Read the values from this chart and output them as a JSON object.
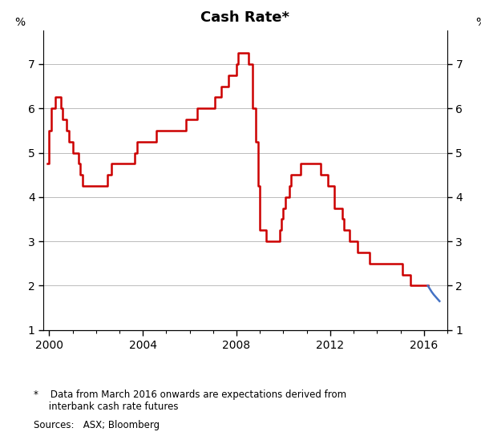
{
  "title": "Cash Rate*",
  "ylabel_left": "%",
  "ylabel_right": "%",
  "ylim": [
    1,
    7.75
  ],
  "yticks": [
    1,
    2,
    3,
    4,
    5,
    6,
    7
  ],
  "xlim_num": [
    1999.75,
    2017.0
  ],
  "xticks": [
    2000,
    2004,
    2008,
    2012,
    2016
  ],
  "footnote_star": "*    Data from March 2016 onwards are expectations derived from\n     interbank cash rate futures",
  "sources": "Sources:   ASX; Bloomberg",
  "red_color": "#CC0000",
  "blue_color": "#4472C4",
  "red_data": [
    [
      1999.917,
      4.75
    ],
    [
      2000.0,
      5.5
    ],
    [
      2000.083,
      6.0
    ],
    [
      2000.25,
      6.25
    ],
    [
      2000.333,
      6.25
    ],
    [
      2000.5,
      6.0
    ],
    [
      2000.583,
      5.75
    ],
    [
      2000.75,
      5.5
    ],
    [
      2000.833,
      5.25
    ],
    [
      2001.0,
      5.0
    ],
    [
      2001.083,
      5.0
    ],
    [
      2001.25,
      4.75
    ],
    [
      2001.333,
      4.5
    ],
    [
      2001.417,
      4.25
    ],
    [
      2001.583,
      4.25
    ],
    [
      2001.667,
      4.25
    ],
    [
      2001.75,
      4.25
    ],
    [
      2001.917,
      4.25
    ],
    [
      2002.0,
      4.25
    ],
    [
      2002.083,
      4.25
    ],
    [
      2002.25,
      4.25
    ],
    [
      2002.417,
      4.25
    ],
    [
      2002.5,
      4.5
    ],
    [
      2002.667,
      4.75
    ],
    [
      2002.75,
      4.75
    ],
    [
      2002.917,
      4.75
    ],
    [
      2003.0,
      4.75
    ],
    [
      2003.167,
      4.75
    ],
    [
      2003.333,
      4.75
    ],
    [
      2003.5,
      4.75
    ],
    [
      2003.583,
      4.75
    ],
    [
      2003.667,
      5.0
    ],
    [
      2003.75,
      5.25
    ],
    [
      2003.917,
      5.25
    ],
    [
      2004.0,
      5.25
    ],
    [
      2004.083,
      5.25
    ],
    [
      2004.167,
      5.25
    ],
    [
      2004.333,
      5.25
    ],
    [
      2004.5,
      5.25
    ],
    [
      2004.583,
      5.5
    ],
    [
      2004.667,
      5.5
    ],
    [
      2004.833,
      5.5
    ],
    [
      2004.917,
      5.5
    ],
    [
      2005.0,
      5.5
    ],
    [
      2005.25,
      5.5
    ],
    [
      2005.5,
      5.5
    ],
    [
      2005.667,
      5.5
    ],
    [
      2005.75,
      5.5
    ],
    [
      2005.833,
      5.75
    ],
    [
      2005.917,
      5.75
    ],
    [
      2006.0,
      5.75
    ],
    [
      2006.167,
      5.75
    ],
    [
      2006.25,
      5.75
    ],
    [
      2006.333,
      6.0
    ],
    [
      2006.5,
      6.0
    ],
    [
      2006.667,
      6.0
    ],
    [
      2006.75,
      6.0
    ],
    [
      2006.833,
      6.0
    ],
    [
      2006.917,
      6.0
    ],
    [
      2007.0,
      6.0
    ],
    [
      2007.083,
      6.25
    ],
    [
      2007.25,
      6.25
    ],
    [
      2007.333,
      6.5
    ],
    [
      2007.5,
      6.5
    ],
    [
      2007.583,
      6.5
    ],
    [
      2007.667,
      6.75
    ],
    [
      2007.75,
      6.75
    ],
    [
      2007.833,
      6.75
    ],
    [
      2007.917,
      6.75
    ],
    [
      2008.0,
      7.0
    ],
    [
      2008.083,
      7.25
    ],
    [
      2008.167,
      7.25
    ],
    [
      2008.25,
      7.25
    ],
    [
      2008.333,
      7.25
    ],
    [
      2008.5,
      7.0
    ],
    [
      2008.583,
      7.0
    ],
    [
      2008.667,
      6.0
    ],
    [
      2008.75,
      6.0
    ],
    [
      2008.833,
      5.25
    ],
    [
      2008.917,
      4.25
    ],
    [
      2009.0,
      3.25
    ],
    [
      2009.083,
      3.25
    ],
    [
      2009.167,
      3.25
    ],
    [
      2009.25,
      3.0
    ],
    [
      2009.333,
      3.0
    ],
    [
      2009.5,
      3.0
    ],
    [
      2009.583,
      3.0
    ],
    [
      2009.667,
      3.0
    ],
    [
      2009.75,
      3.0
    ],
    [
      2009.833,
      3.25
    ],
    [
      2009.917,
      3.5
    ],
    [
      2010.0,
      3.75
    ],
    [
      2010.083,
      4.0
    ],
    [
      2010.25,
      4.25
    ],
    [
      2010.333,
      4.5
    ],
    [
      2010.5,
      4.5
    ],
    [
      2010.583,
      4.5
    ],
    [
      2010.667,
      4.5
    ],
    [
      2010.75,
      4.75
    ],
    [
      2010.833,
      4.75
    ],
    [
      2010.917,
      4.75
    ],
    [
      2011.0,
      4.75
    ],
    [
      2011.083,
      4.75
    ],
    [
      2011.167,
      4.75
    ],
    [
      2011.25,
      4.75
    ],
    [
      2011.333,
      4.75
    ],
    [
      2011.5,
      4.75
    ],
    [
      2011.583,
      4.5
    ],
    [
      2011.667,
      4.5
    ],
    [
      2011.75,
      4.5
    ],
    [
      2011.833,
      4.5
    ],
    [
      2011.917,
      4.25
    ],
    [
      2012.0,
      4.25
    ],
    [
      2012.083,
      4.25
    ],
    [
      2012.167,
      3.75
    ],
    [
      2012.333,
      3.75
    ],
    [
      2012.5,
      3.5
    ],
    [
      2012.583,
      3.25
    ],
    [
      2012.667,
      3.25
    ],
    [
      2012.75,
      3.25
    ],
    [
      2012.833,
      3.0
    ],
    [
      2012.917,
      3.0
    ],
    [
      2013.0,
      3.0
    ],
    [
      2013.083,
      3.0
    ],
    [
      2013.167,
      2.75
    ],
    [
      2013.333,
      2.75
    ],
    [
      2013.5,
      2.75
    ],
    [
      2013.583,
      2.75
    ],
    [
      2013.667,
      2.5
    ],
    [
      2013.75,
      2.5
    ],
    [
      2013.833,
      2.5
    ],
    [
      2013.917,
      2.5
    ],
    [
      2014.0,
      2.5
    ],
    [
      2014.083,
      2.5
    ],
    [
      2014.167,
      2.5
    ],
    [
      2014.25,
      2.5
    ],
    [
      2014.333,
      2.5
    ],
    [
      2014.5,
      2.5
    ],
    [
      2014.583,
      2.5
    ],
    [
      2014.667,
      2.5
    ],
    [
      2014.75,
      2.5
    ],
    [
      2014.833,
      2.5
    ],
    [
      2014.917,
      2.5
    ],
    [
      2015.0,
      2.5
    ],
    [
      2015.083,
      2.25
    ],
    [
      2015.167,
      2.25
    ],
    [
      2015.25,
      2.25
    ],
    [
      2015.333,
      2.25
    ],
    [
      2015.417,
      2.0
    ],
    [
      2015.5,
      2.0
    ],
    [
      2015.583,
      2.0
    ],
    [
      2015.667,
      2.0
    ],
    [
      2015.75,
      2.0
    ],
    [
      2015.833,
      2.0
    ],
    [
      2015.917,
      2.0
    ],
    [
      2016.0,
      2.0
    ],
    [
      2016.083,
      2.0
    ],
    [
      2016.167,
      2.0
    ]
  ],
  "blue_data": [
    [
      2016.167,
      2.0
    ],
    [
      2016.25,
      1.93
    ],
    [
      2016.333,
      1.86
    ],
    [
      2016.417,
      1.8
    ],
    [
      2016.5,
      1.75
    ],
    [
      2016.583,
      1.7
    ],
    [
      2016.667,
      1.65
    ]
  ],
  "background_color": "#ffffff",
  "grid_color": "#bbbbbb",
  "title_fontsize": 13,
  "line_width": 1.8
}
